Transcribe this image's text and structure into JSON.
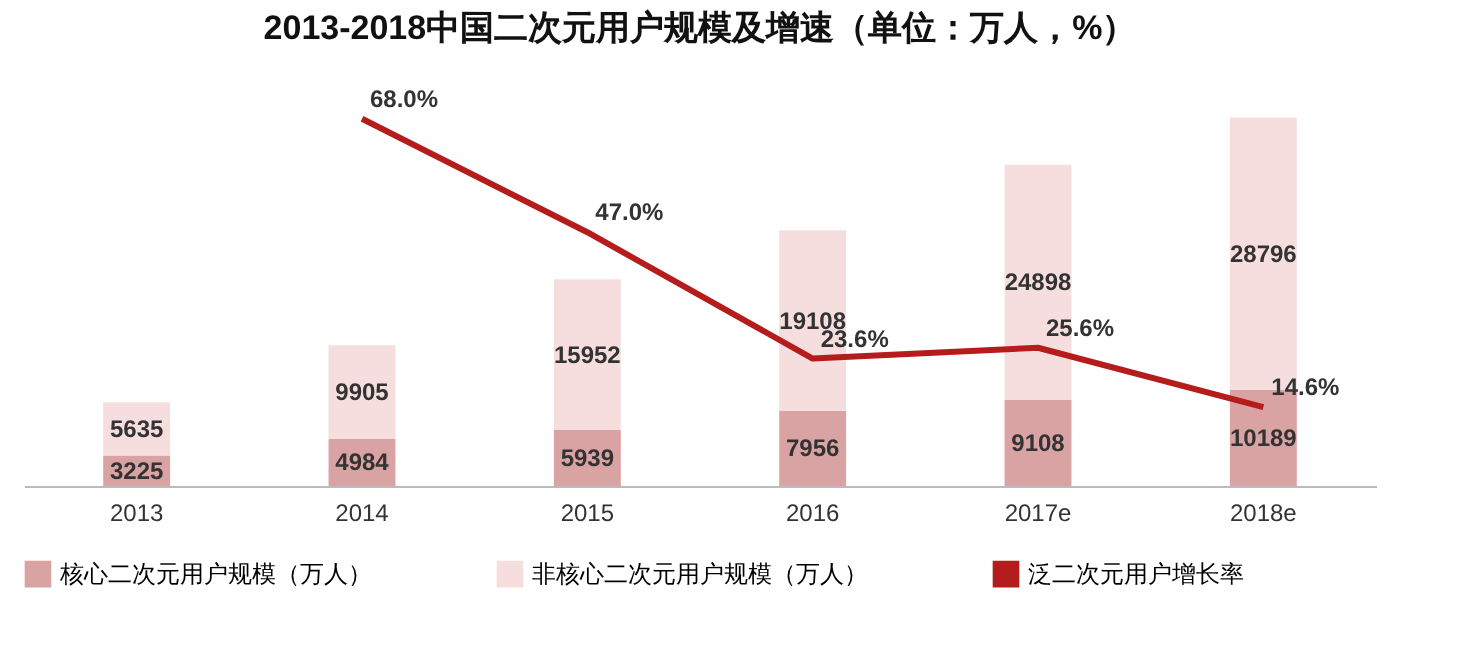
{
  "chart_data": {
    "type": "bar",
    "title": "2013-2018中国二次元用户规模及增速（单位：万人，%）",
    "categories": [
      "2013",
      "2014",
      "2015",
      "2016",
      "2017e",
      "2018e"
    ],
    "stacked": true,
    "data_labels": true,
    "legend": "bottom",
    "grid": false,
    "series": [
      {
        "name": "核心二次元用户规模（万人）",
        "color": "#daa3a3",
        "values": [
          3225,
          4984,
          5939,
          7956,
          9108,
          10189
        ]
      },
      {
        "name": "非核心二次元用户规模（万人）",
        "color": "#f7dede",
        "values": [
          5635,
          9905,
          15952,
          19108,
          24898,
          28796
        ]
      },
      {
        "name": "泛二次元用户增长率",
        "type": "line",
        "axis": "y2",
        "color": "#b51c1c",
        "values": [
          null,
          68.0,
          47.0,
          23.6,
          25.6,
          14.6
        ],
        "value_labels": [
          null,
          "68.0%",
          "47.0%",
          "23.6%",
          "25.6%",
          "14.6%"
        ]
      }
    ]
  }
}
